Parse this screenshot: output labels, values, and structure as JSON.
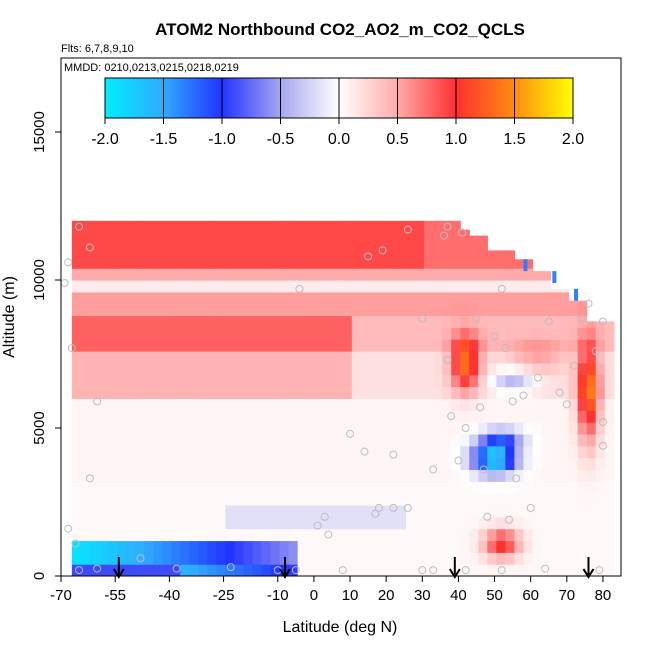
{
  "chart_data": {
    "type": "heatmap",
    "title": "ATOM2 Northbound CO2_AO2_m_CO2_QCLS",
    "subtitle_flights": "Flts: 6,7,8,9,10",
    "subtitle_dates": "MMDD: 0210,0213,0215,0218,0219",
    "xlabel": "Latitude (deg N)",
    "ylabel": "Altitude (m)",
    "xlim": [
      -70,
      85
    ],
    "ylim": [
      0,
      17500
    ],
    "x_ticks": [
      -70,
      -55,
      -40,
      -25,
      -10,
      0,
      10,
      20,
      30,
      40,
      50,
      60,
      70,
      80
    ],
    "y_ticks": [
      0,
      5000,
      10000,
      15000
    ],
    "colorbar": {
      "range": [
        -2.0,
        2.0
      ],
      "ticks": [
        "-2.0",
        "-1.5",
        "-1.0",
        "-0.5",
        "0.0",
        "0.5",
        "1.0",
        "1.5",
        "2.0"
      ]
    },
    "grid": false,
    "arrow_latitudes": [
      -54,
      -8,
      39,
      76
    ],
    "observation_points": [
      [
        -65,
        11800
      ],
      [
        -68,
        10600
      ],
      [
        -69,
        9900
      ],
      [
        -62,
        11100
      ],
      [
        -67,
        7700
      ],
      [
        -60,
        5900
      ],
      [
        -62,
        3300
      ],
      [
        -68,
        1600
      ],
      [
        -66,
        1100
      ],
      [
        -65,
        200
      ],
      [
        -60,
        250
      ],
      [
        -48,
        600
      ],
      [
        -38,
        250
      ],
      [
        -23,
        300
      ],
      [
        -10,
        200
      ],
      [
        -5,
        200
      ],
      [
        -4,
        9700
      ],
      [
        1,
        1700
      ],
      [
        3,
        2000
      ],
      [
        4,
        1400
      ],
      [
        8,
        200
      ],
      [
        10,
        4800
      ],
      [
        14,
        4200
      ],
      [
        15,
        10800
      ],
      [
        17,
        2100
      ],
      [
        18,
        2300
      ],
      [
        19,
        11000
      ],
      [
        22,
        2300
      ],
      [
        22,
        4100
      ],
      [
        26,
        11700
      ],
      [
        26,
        2300
      ],
      [
        30,
        8700
      ],
      [
        30,
        200
      ],
      [
        33,
        3600
      ],
      [
        36,
        11500
      ],
      [
        37,
        11800
      ],
      [
        37,
        7300
      ],
      [
        38,
        5400
      ],
      [
        40,
        3900
      ],
      [
        41,
        11600
      ],
      [
        42,
        5000
      ],
      [
        45,
        8700
      ],
      [
        46,
        5700
      ],
      [
        47,
        3600
      ],
      [
        48,
        2000
      ],
      [
        50,
        8100
      ],
      [
        52,
        9700
      ],
      [
        53,
        7700
      ],
      [
        54,
        1900
      ],
      [
        55,
        5900
      ],
      [
        56,
        3300
      ],
      [
        58,
        6100
      ],
      [
        60,
        2300
      ],
      [
        62,
        6700
      ],
      [
        65,
        8600
      ],
      [
        68,
        6200
      ],
      [
        70,
        5800
      ],
      [
        72,
        7100
      ],
      [
        74,
        8700
      ],
      [
        76,
        9200
      ],
      [
        78,
        7600
      ],
      [
        80,
        8600
      ],
      [
        80,
        5200
      ],
      [
        80,
        4400
      ],
      [
        79,
        200
      ],
      [
        64,
        250
      ],
      [
        52,
        200
      ],
      [
        42,
        200
      ],
      [
        33,
        200
      ]
    ]
  }
}
